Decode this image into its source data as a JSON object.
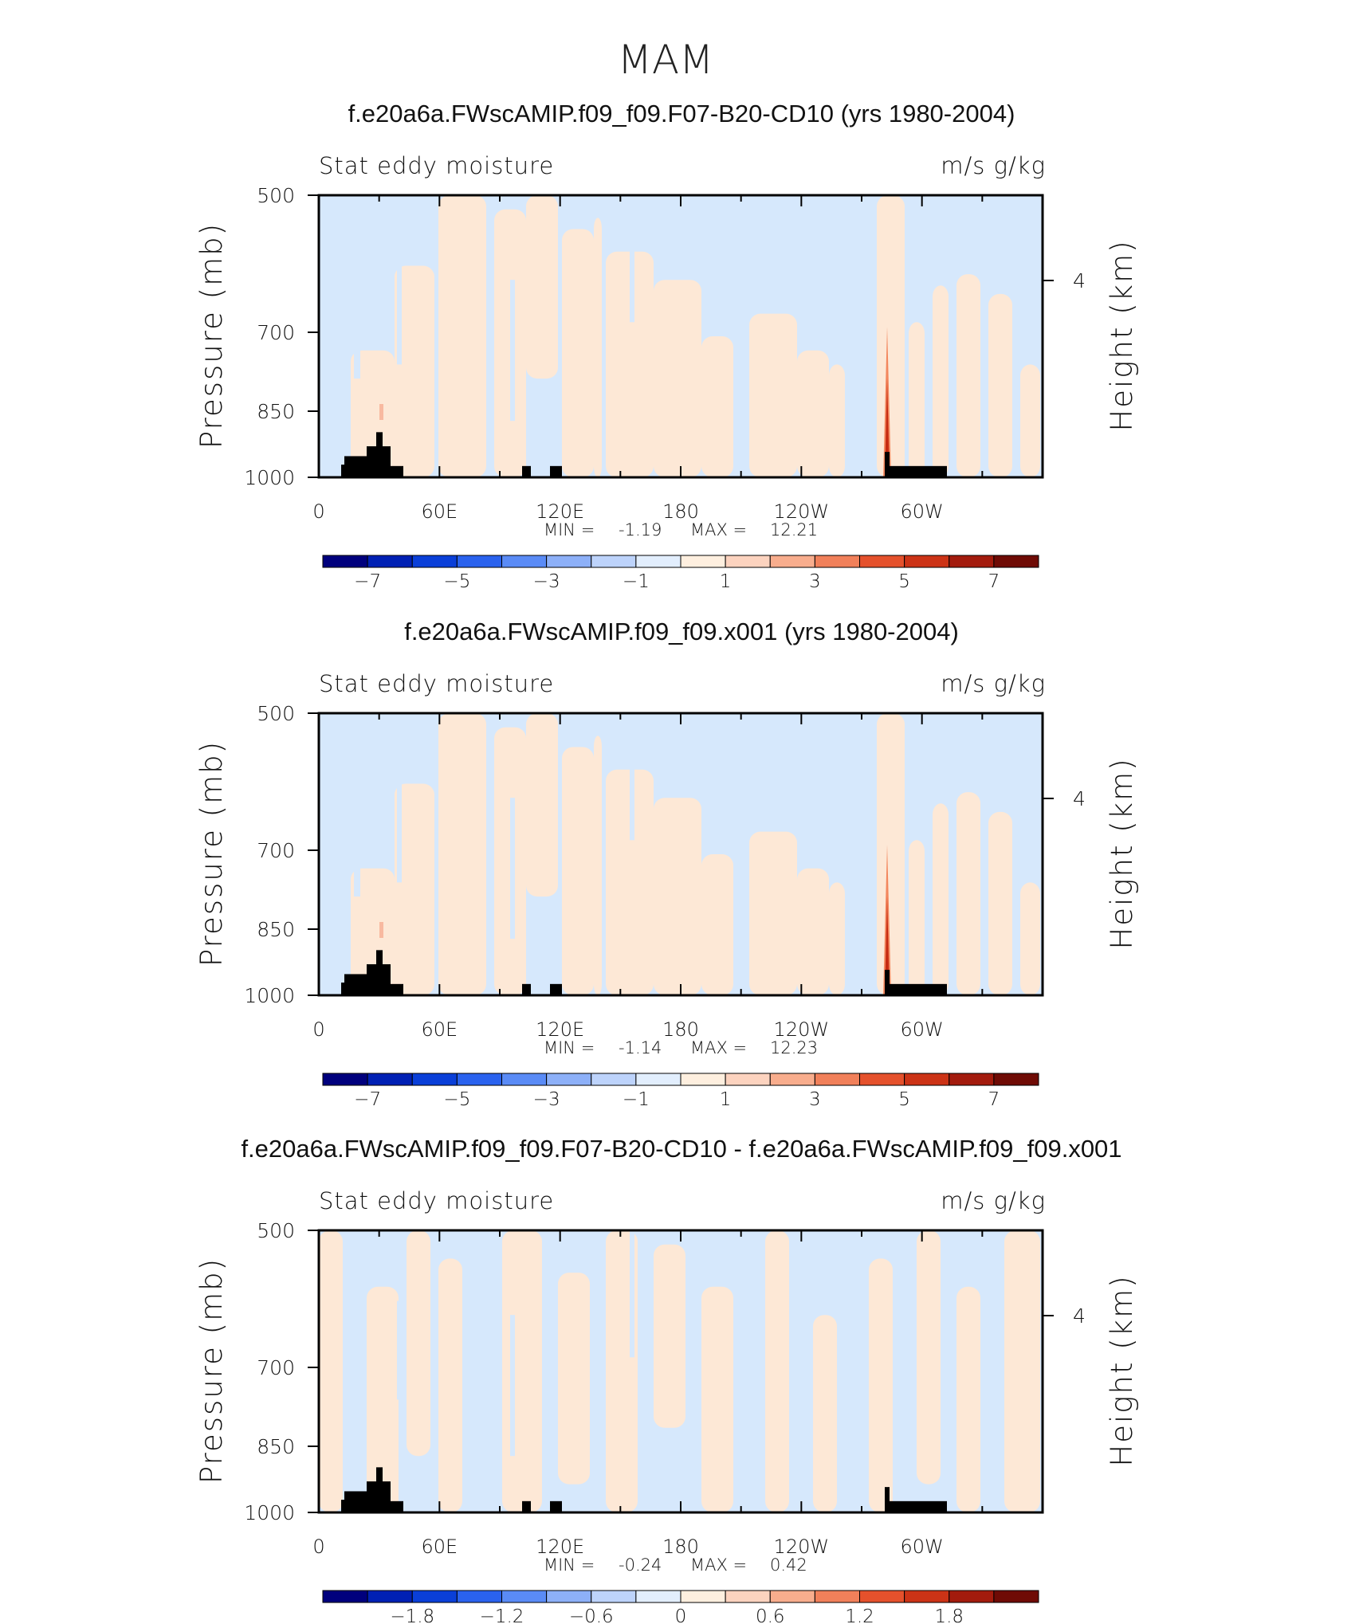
{
  "figure_title": "MAM",
  "colors": {
    "neg_light": "#d6e8fc",
    "pos_light": "#fde8d6",
    "pos_mid": "#f8b9a0",
    "topo": "#000000"
  },
  "chart_data": [
    {
      "type": "heatmap",
      "title": "f.e20a6a.FWscAMIP.f09_f09.F07-B20-CD10 (yrs 1980-2004)",
      "left_label": "Stat eddy moisture",
      "right_label": "m/s g/kg",
      "ylabel": "Pressure (mb)",
      "ylabel_right": "Height (km)",
      "yticks": [
        "500",
        "700",
        "850",
        "1000"
      ],
      "yticks_right": [
        "4"
      ],
      "xticks": [
        "0",
        "60E",
        "120E",
        "180",
        "120W",
        "60W"
      ],
      "stats": {
        "min_label": "MIN =",
        "min": "-1.19",
        "max_label": "MAX =",
        "max": "12.21"
      },
      "colorbar_labels": [
        "-7",
        "-5",
        "-3",
        "-1",
        "1",
        "3",
        "5",
        "7"
      ]
    },
    {
      "type": "heatmap",
      "title": "f.e20a6a.FWscAMIP.f09_f09.x001 (yrs 1980-2004)",
      "left_label": "Stat eddy moisture",
      "right_label": "m/s g/kg",
      "ylabel": "Pressure (mb)",
      "ylabel_right": "Height (km)",
      "yticks": [
        "500",
        "700",
        "850",
        "1000"
      ],
      "yticks_right": [
        "4"
      ],
      "xticks": [
        "0",
        "60E",
        "120E",
        "180",
        "120W",
        "60W"
      ],
      "stats": {
        "min_label": "MIN =",
        "min": "-1.14",
        "max_label": "MAX =",
        "max": "12.23"
      },
      "colorbar_labels": [
        "-7",
        "-5",
        "-3",
        "-1",
        "1",
        "3",
        "5",
        "7"
      ]
    },
    {
      "type": "heatmap",
      "title": "f.e20a6a.FWscAMIP.f09_f09.F07-B20-CD10 - f.e20a6a.FWscAMIP.f09_f09.x001",
      "left_label": "Stat eddy moisture",
      "right_label": "m/s g/kg",
      "ylabel": "Pressure (mb)",
      "ylabel_right": "Height (km)",
      "yticks": [
        "500",
        "700",
        "850",
        "1000"
      ],
      "yticks_right": [
        "4"
      ],
      "xticks": [
        "0",
        "60E",
        "120E",
        "180",
        "120W",
        "60W"
      ],
      "stats": {
        "min_label": "MIN =",
        "min": "-0.24",
        "max_label": "MAX =",
        "max": "0.42"
      },
      "colorbar_labels": [
        "-1.8",
        "-1.2",
        "-0.6",
        "0",
        "0.6",
        "1.2",
        "1.8"
      ]
    }
  ],
  "colorbar_colors": [
    "#00007d",
    "#0020b4",
    "#0a3fd8",
    "#2a62ee",
    "#5a8bf6",
    "#8db0f8",
    "#bdd3fb",
    "#e2eefd",
    "#feefdf",
    "#fcd3bf",
    "#f8ad8d",
    "#f1805a",
    "#e5512c",
    "#cc3316",
    "#a31b0d",
    "#6f0b05"
  ]
}
